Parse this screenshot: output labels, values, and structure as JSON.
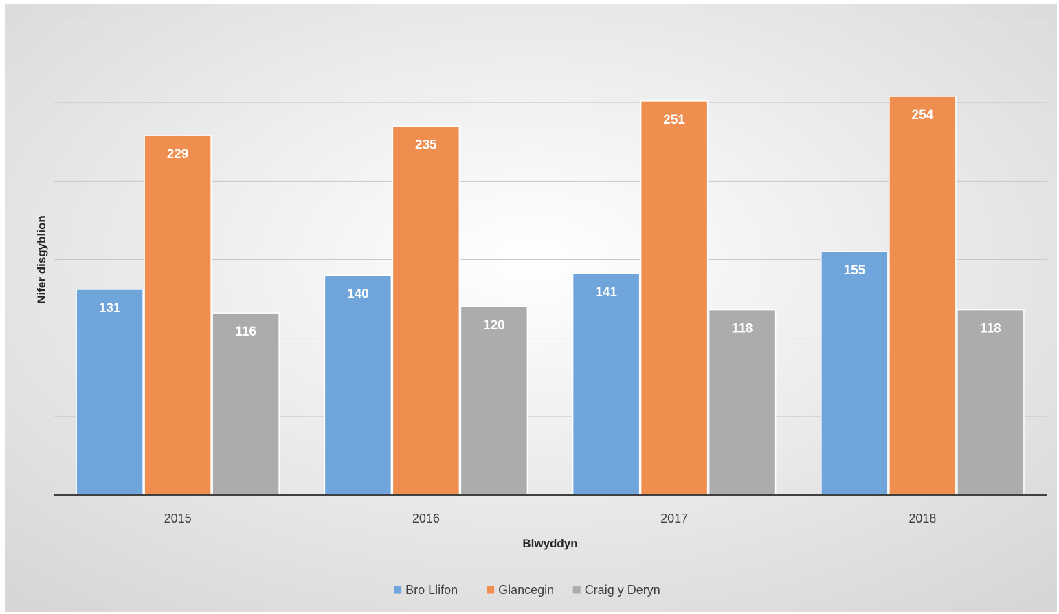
{
  "chart_data": {
    "type": "bar",
    "categories": [
      "2015",
      "2016",
      "2017",
      "2018"
    ],
    "series": [
      {
        "name": "Bro Llifon",
        "values": [
          131,
          140,
          141,
          155
        ],
        "color": "#6fa5da"
      },
      {
        "name": "Glancegin",
        "values": [
          229,
          235,
          251,
          254
        ],
        "color": "#ef8e4e"
      },
      {
        "name": "Craig y Deryn",
        "values": [
          116,
          120,
          118,
          118
        ],
        "color": "#acacac"
      }
    ],
    "title": "",
    "xlabel": "Blwyddyn",
    "ylabel": "Nifer disgyblion",
    "ylim": [
      0,
      300
    ],
    "gridlines": [
      50,
      100,
      150,
      200,
      250,
      300
    ],
    "grid": true,
    "legend_position": "bottom",
    "data_labels": true
  }
}
